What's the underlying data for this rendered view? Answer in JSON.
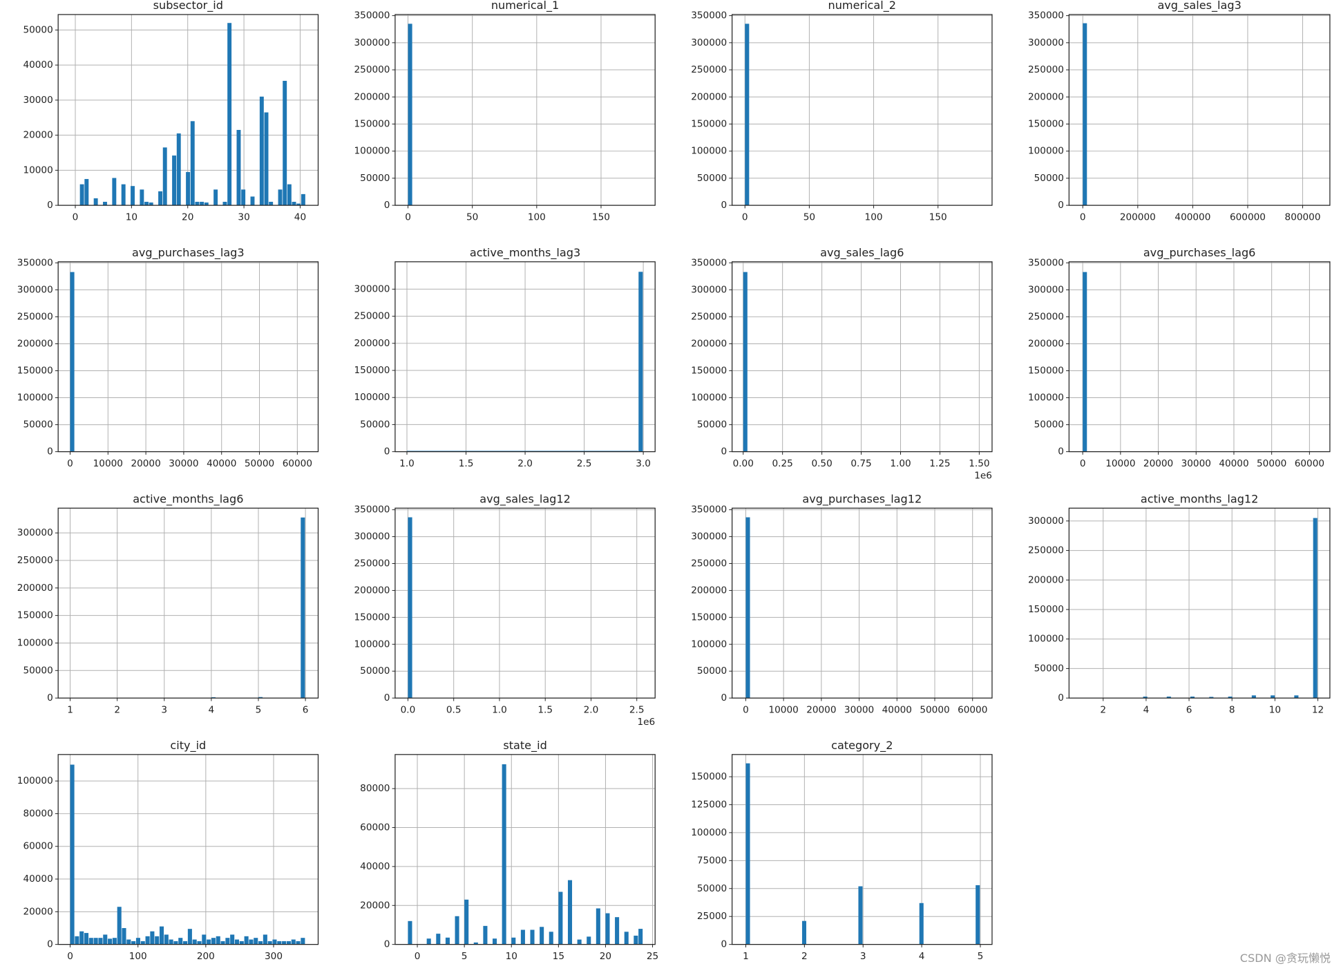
{
  "chart_data": [
    {
      "type": "histogram",
      "title": "subsector_id",
      "color": "#1f77b4",
      "grid": true,
      "bins": [
        0,
        0.82,
        1.64,
        2.46,
        3.28,
        4.1,
        4.92,
        5.74,
        6.56,
        7.38,
        8.2,
        9.02,
        9.84,
        10.66,
        11.48,
        12.3,
        13.12,
        13.94,
        14.76,
        15.58,
        16.4,
        17.22,
        18.04,
        18.86,
        19.68,
        20.5,
        21.32,
        22.14,
        22.96,
        23.78,
        24.6,
        25.42,
        26.24,
        27.06,
        27.88,
        28.7,
        29.52,
        30.34,
        31.16,
        31.98,
        32.8,
        33.62,
        34.44,
        35.26,
        36.08,
        36.9,
        37.72,
        38.54,
        39.36,
        40.18,
        41
      ],
      "counts": [
        0,
        6000,
        7500,
        0,
        2000,
        0,
        1000,
        0,
        7800,
        0,
        6000,
        0,
        5500,
        0,
        4500,
        1000,
        800,
        0,
        4000,
        16500,
        0,
        14200,
        20500,
        0,
        9500,
        24000,
        1000,
        1000,
        800,
        0,
        4500,
        0,
        1000,
        52000,
        0,
        21500,
        4500,
        0,
        2500,
        0,
        31000,
        26500,
        1000,
        0,
        4500,
        35500,
        6000,
        1000,
        500,
        3200
      ],
      "xlim": [
        -3.05,
        43.2
      ],
      "xticks": [
        0,
        10,
        20,
        30,
        40
      ],
      "ylim": [
        0,
        54400
      ],
      "yticks": [
        0,
        10000,
        20000,
        30000,
        40000,
        50000
      ]
    },
    {
      "type": "histogram",
      "title": "numerical_1",
      "color": "#1f77b4",
      "grid": true,
      "bins": [
        0,
        3.66,
        183
      ],
      "counts": [
        335000,
        0
      ],
      "xlim": [
        -10,
        192
      ],
      "xticks": [
        0,
        50,
        100,
        150
      ],
      "ylim": [
        0,
        352000
      ],
      "yticks": [
        0,
        50000,
        100000,
        150000,
        200000,
        250000,
        300000,
        350000
      ]
    },
    {
      "type": "histogram",
      "title": "numerical_2",
      "color": "#1f77b4",
      "grid": true,
      "bins": [
        0,
        3.66,
        183
      ],
      "counts": [
        335000,
        0
      ],
      "xlim": [
        -10,
        192
      ],
      "xticks": [
        0,
        50,
        100,
        150
      ],
      "ylim": [
        0,
        352000
      ],
      "yticks": [
        0,
        50000,
        100000,
        150000,
        200000,
        250000,
        300000,
        350000
      ]
    },
    {
      "type": "histogram",
      "title": "avg_sales_lag3",
      "color": "#1f77b4",
      "grid": true,
      "bins": [
        0,
        17000,
        850000
      ],
      "counts": [
        336000,
        0
      ],
      "xlim": [
        -50000,
        899000
      ],
      "xticks": [
        0,
        200000,
        400000,
        600000,
        800000
      ],
      "ylim": [
        0,
        352000
      ],
      "yticks": [
        0,
        50000,
        100000,
        150000,
        200000,
        250000,
        300000,
        350000
      ]
    },
    {
      "type": "histogram",
      "title": "avg_purchases_lag3",
      "color": "#1f77b4",
      "grid": true,
      "bins": [
        0,
        1250,
        62500
      ],
      "counts": [
        333000,
        0
      ],
      "xlim": [
        -3160,
        65500
      ],
      "xticks": [
        0,
        10000,
        20000,
        30000,
        40000,
        50000,
        60000
      ],
      "ylim": [
        0,
        352000
      ],
      "yticks": [
        0,
        50000,
        100000,
        150000,
        200000,
        250000,
        300000,
        350000
      ]
    },
    {
      "type": "histogram",
      "title": "active_months_lag3",
      "color": "#1f77b4",
      "grid": true,
      "bins": [
        1,
        2.96,
        3
      ],
      "counts": [
        1500,
        332000
      ],
      "xlim": [
        0.9,
        3.1
      ],
      "xticks": [
        {
          "value": 1,
          "label": "1.0"
        },
        1.5,
        {
          "value": 2,
          "label": "2.0"
        },
        2.5,
        {
          "value": 3,
          "label": "3.0"
        }
      ],
      "ylim": [
        0,
        350500
      ],
      "yticks": [
        0,
        50000,
        100000,
        150000,
        200000,
        250000,
        300000
      ]
    },
    {
      "type": "histogram",
      "title": "avg_sales_lag6",
      "color": "#1f77b4",
      "grid": true,
      "bins": [
        0,
        30000,
        1500000
      ],
      "counts": [
        333000,
        0
      ],
      "xlim": [
        -70650,
        1581500
      ],
      "xticks": [
        {
          "value": 0,
          "label": "0.00"
        },
        {
          "value": 250000,
          "label": "0.25"
        },
        {
          "value": 500000,
          "label": "0.50"
        },
        {
          "value": 750000,
          "label": "0.75"
        },
        {
          "value": 1000000,
          "label": "1.00"
        },
        {
          "value": 1250000,
          "label": "1.25"
        },
        {
          "value": 1500000,
          "label": "1.50"
        }
      ],
      "x_offset_label": "1e6",
      "ylim": [
        0,
        352000
      ],
      "yticks": [
        0,
        50000,
        100000,
        150000,
        200000,
        250000,
        300000,
        350000
      ]
    },
    {
      "type": "histogram",
      "title": "avg_purchases_lag6",
      "color": "#1f77b4",
      "grid": true,
      "bins": [
        0,
        1250,
        62500
      ],
      "counts": [
        333000,
        0
      ],
      "xlim": [
        -3620,
        65400
      ],
      "xticks": [
        0,
        10000,
        20000,
        30000,
        40000,
        50000,
        60000
      ],
      "ylim": [
        0,
        352000
      ],
      "yticks": [
        0,
        50000,
        100000,
        150000,
        200000,
        250000,
        300000,
        350000
      ]
    },
    {
      "type": "histogram",
      "title": "active_months_lag6",
      "color": "#1f77b4",
      "grid": true,
      "bins": [
        1,
        1.1,
        4,
        4.1,
        5,
        5.1,
        5.9,
        6
      ],
      "counts": [
        300,
        0,
        1500,
        0,
        1800,
        0,
        328000
      ],
      "xlim": [
        0.745,
        6.27
      ],
      "xticks": [
        1,
        2,
        3,
        4,
        5,
        6
      ],
      "ylim": [
        0,
        345000
      ],
      "yticks": [
        0,
        50000,
        100000,
        150000,
        200000,
        250000,
        300000
      ]
    },
    {
      "type": "histogram",
      "title": "avg_sales_lag12",
      "color": "#1f77b4",
      "grid": true,
      "bins": [
        0,
        52000,
        2600000
      ],
      "counts": [
        336000,
        0
      ],
      "xlim": [
        -140000,
        2700000
      ],
      "xticks": [
        {
          "value": 0,
          "label": "0.0"
        },
        {
          "value": 500000,
          "label": "0.5"
        },
        {
          "value": 1000000,
          "label": "1.0"
        },
        {
          "value": 1500000,
          "label": "1.5"
        },
        {
          "value": 2000000,
          "label": "2.0"
        },
        {
          "value": 2500000,
          "label": "2.5"
        }
      ],
      "x_offset_label": "1e6",
      "ylim": [
        0,
        353000
      ],
      "yticks": [
        0,
        50000,
        100000,
        150000,
        200000,
        250000,
        300000,
        350000
      ]
    },
    {
      "type": "histogram",
      "title": "avg_purchases_lag12",
      "color": "#1f77b4",
      "grid": true,
      "bins": [
        0,
        1250,
        62500
      ],
      "counts": [
        336000,
        0
      ],
      "xlim": [
        -3620,
        65160
      ],
      "xticks": [
        0,
        10000,
        20000,
        30000,
        40000,
        50000,
        60000
      ],
      "ylim": [
        0,
        353000
      ],
      "yticks": [
        0,
        50000,
        100000,
        150000,
        200000,
        250000,
        300000,
        350000
      ]
    },
    {
      "type": "histogram",
      "title": "active_months_lag12",
      "color": "#1f77b4",
      "grid": true,
      "bins": [
        1,
        3.86,
        4.08,
        4.96,
        5.18,
        6.06,
        6.28,
        6.94,
        7.16,
        7.82,
        8.04,
        8.92,
        9.14,
        9.8,
        10.02,
        10.9,
        11.12,
        11.78,
        12
      ],
      "counts": [
        400,
        2500,
        0,
        2500,
        0,
        2500,
        0,
        2000,
        0,
        2500,
        0,
        4500,
        0,
        4500,
        0,
        4500,
        0,
        305000
      ],
      "xlim": [
        0.41,
        12.56
      ],
      "xticks": [
        2,
        4,
        6,
        8,
        10,
        12
      ],
      "ylim": [
        0,
        321700
      ],
      "yticks": [
        0,
        50000,
        100000,
        150000,
        200000,
        250000,
        300000
      ]
    },
    {
      "type": "histogram",
      "title": "city_id",
      "color": "#1f77b4",
      "grid": true,
      "bins": [
        0,
        6.94,
        13.88,
        20.82,
        27.76,
        34.7,
        41.64,
        48.58,
        55.52,
        62.46,
        69.4,
        76.34,
        83.28,
        90.22,
        97.16,
        104.1,
        111.04,
        117.98,
        124.92,
        131.86,
        138.8,
        145.74,
        152.68,
        159.62,
        166.56,
        173.5,
        180.44,
        187.38,
        194.32,
        201.26,
        208.2,
        215.14,
        222.08,
        229.02,
        235.96,
        242.9,
        249.84,
        256.78,
        263.72,
        270.66,
        277.6,
        284.54,
        291.48,
        298.42,
        305.36,
        312.3,
        319.24,
        326.18,
        333.12,
        340.06,
        347
      ],
      "counts": [
        110000,
        5000,
        8000,
        7000,
        4000,
        4000,
        4000,
        6000,
        3500,
        4000,
        23000,
        10000,
        3000,
        2000,
        4000,
        2000,
        5000,
        8000,
        5000,
        11000,
        6000,
        3000,
        2000,
        4000,
        2000,
        9500,
        3000,
        2000,
        6000,
        3000,
        4000,
        5000,
        2000,
        4000,
        6000,
        3000,
        2000,
        5000,
        3000,
        4000,
        2000,
        6000,
        2000,
        3000,
        2000,
        2000,
        2000,
        3000,
        2000,
        4000
      ],
      "xlim": [
        -17.7,
        365.7
      ],
      "xticks": [
        0,
        100,
        200,
        300
      ],
      "ylim": [
        0,
        116200
      ],
      "yticks": [
        0,
        20000,
        40000,
        60000,
        80000,
        100000
      ]
    },
    {
      "type": "histogram",
      "title": "state_id",
      "color": "#1f77b4",
      "grid": true,
      "bins": [
        -1,
        -0.5,
        0,
        0.5,
        1,
        1.5,
        2,
        2.5,
        3,
        3.5,
        4,
        4.5,
        5,
        5.5,
        6,
        6.5,
        7,
        7.5,
        8,
        8.5,
        9,
        9.5,
        10,
        10.5,
        11,
        11.5,
        12,
        12.5,
        13,
        13.5,
        14,
        14.5,
        15,
        15.5,
        16,
        16.5,
        17,
        17.5,
        18,
        18.5,
        19,
        19.5,
        20,
        20.5,
        21,
        21.5,
        22,
        22.5,
        23,
        23.5,
        24
      ],
      "counts": [
        12000,
        0,
        0,
        0,
        3000,
        0,
        5500,
        0,
        3500,
        0,
        14500,
        0,
        23000,
        0,
        1000,
        0,
        9500,
        0,
        3000,
        0,
        92500,
        0,
        3500,
        0,
        7500,
        0,
        7500,
        0,
        9000,
        0,
        6500,
        0,
        27000,
        0,
        33000,
        0,
        2500,
        0,
        4000,
        0,
        18500,
        0,
        16000,
        0,
        14000,
        0,
        6500,
        0,
        4500,
        8000
      ],
      "xlim": [
        -2.36,
        25.27
      ],
      "xticks": [
        0,
        5,
        10,
        15,
        20,
        25
      ],
      "ylim": [
        0,
        97500
      ],
      "yticks": [
        0,
        20000,
        40000,
        60000,
        80000
      ]
    },
    {
      "type": "histogram",
      "title": "category_2",
      "color": "#1f77b4",
      "grid": true,
      "bins": [
        1,
        1.08,
        1.96,
        2.04,
        2.92,
        3,
        3.96,
        4.04,
        4.92,
        5
      ],
      "counts": [
        162000,
        0,
        21000,
        0,
        52000,
        0,
        37000,
        0,
        53000
      ],
      "xlim": [
        0.766,
        5.2
      ],
      "xticks": [
        1,
        2,
        3,
        4,
        5
      ],
      "ylim": [
        0,
        169900
      ],
      "yticks": [
        0,
        25000,
        50000,
        75000,
        100000,
        125000,
        150000
      ]
    }
  ],
  "watermark": "CSDN @贪玩懒悦"
}
